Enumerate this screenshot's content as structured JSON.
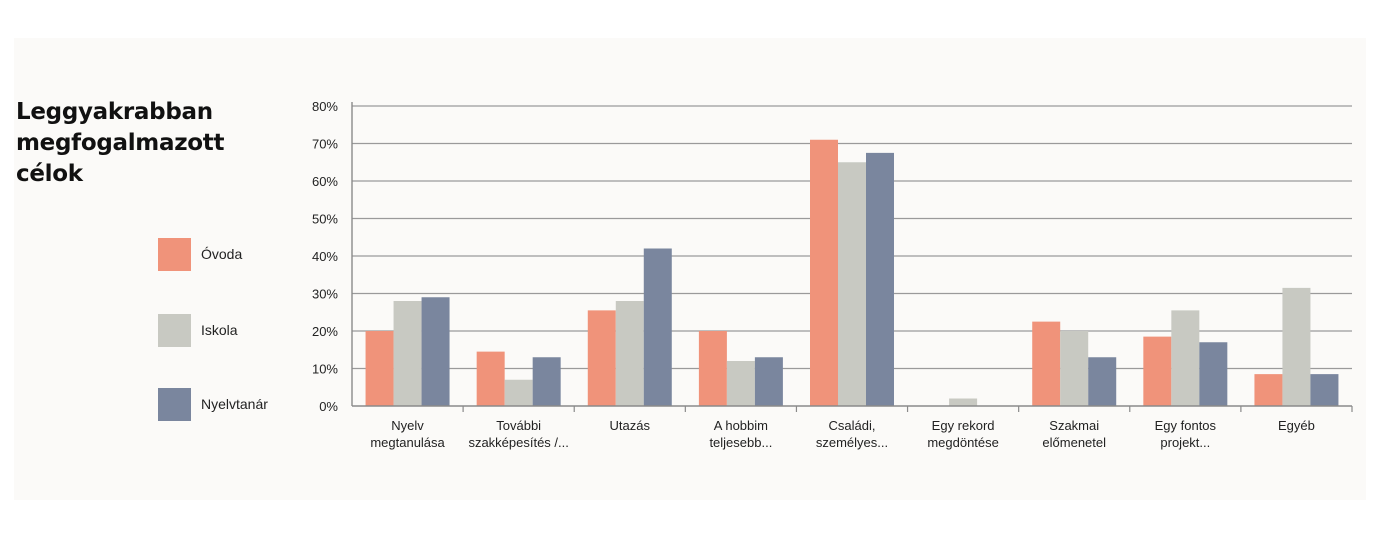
{
  "title_lines": [
    "Leggyakrabban",
    "megfogalmazott",
    "célok"
  ],
  "chart_data": {
    "type": "bar",
    "title": "Leggyakrabban megfogalmazott célok",
    "xlabel": "",
    "ylabel": "",
    "ylim": [
      0,
      80
    ],
    "yticks": [
      0,
      10,
      20,
      30,
      40,
      50,
      60,
      70,
      80
    ],
    "ytick_labels": [
      "0%",
      "10%",
      "20%",
      "30%",
      "40%",
      "50%",
      "60%",
      "70%",
      "80%"
    ],
    "grid": true,
    "legend_position": "left",
    "categories": [
      [
        "Nyelv",
        "megtanulása"
      ],
      [
        "További",
        "szakképesítés /..."
      ],
      [
        "Utazás"
      ],
      [
        "A hobbim",
        "teljesebb..."
      ],
      [
        "Családi,",
        "személyes..."
      ],
      [
        "Egy rekord",
        "megdöntése"
      ],
      [
        "Szakmai",
        "előmenetel"
      ],
      [
        "Egy fontos",
        "projekt..."
      ],
      [
        "Egyéb"
      ]
    ],
    "series": [
      {
        "name": "Óvoda",
        "color": "#f0937a",
        "values": [
          20,
          14.5,
          25.5,
          20,
          71,
          0,
          22.5,
          18.5,
          8.5
        ]
      },
      {
        "name": "Iskola",
        "color": "#c8c9c2",
        "values": [
          28,
          7,
          28,
          12,
          65,
          2,
          20,
          25.5,
          31.5
        ]
      },
      {
        "name": "Nyelvtanár",
        "color": "#7a869e",
        "values": [
          29,
          13,
          42,
          13,
          67.5,
          0,
          13,
          17,
          8.5
        ]
      }
    ]
  }
}
